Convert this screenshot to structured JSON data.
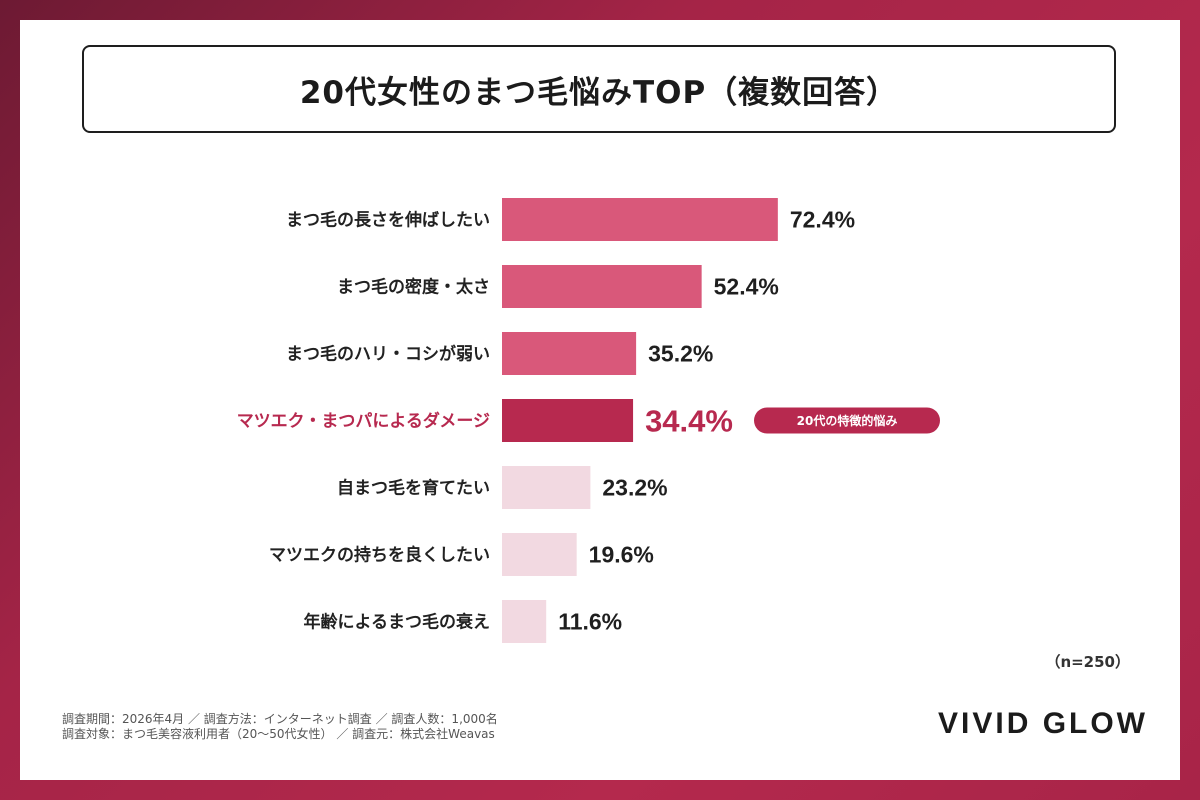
{
  "colors": {
    "primary": "#d9587a",
    "highlight": "#b7294f",
    "light": "#f2d9e1",
    "frame": "#a52447"
  },
  "chart_data": {
    "type": "bar",
    "orientation": "horizontal",
    "title": "20代女性のまつ毛悩みTOP（複数回答）",
    "categories": [
      "まつ毛の長さを伸ばしたい",
      "まつ毛の密度・太さ",
      "まつ毛のハリ・コシが弱い",
      "マツエク・まつパによるダメージ",
      "自まつ毛を育てたい",
      "マツエクの持ちを良くしたい",
      "年齢によるまつ毛の衰え"
    ],
    "values": [
      72.4,
      52.4,
      35.2,
      34.4,
      23.2,
      19.6,
      11.6
    ],
    "value_labels": [
      "72.4%",
      "52.4%",
      "35.2%",
      "34.4%",
      "23.2%",
      "19.6%",
      "11.6%"
    ],
    "unit": "%",
    "highlight_index": 3,
    "highlight_badge": "20代の特徴的悩み",
    "strong_color_count": 4,
    "note": "（n=250）",
    "xlim": [
      0,
      100
    ]
  },
  "footer": {
    "line1": "調査期間：2026年4月 ／ 調査方法：インターネット調査 ／ 調査人数：1,000名",
    "line2": "調査対象：まつ毛美容液利用者（20〜50代女性） ／ 調査元：株式会社Weavas"
  },
  "brand": "VIVID GLOW"
}
